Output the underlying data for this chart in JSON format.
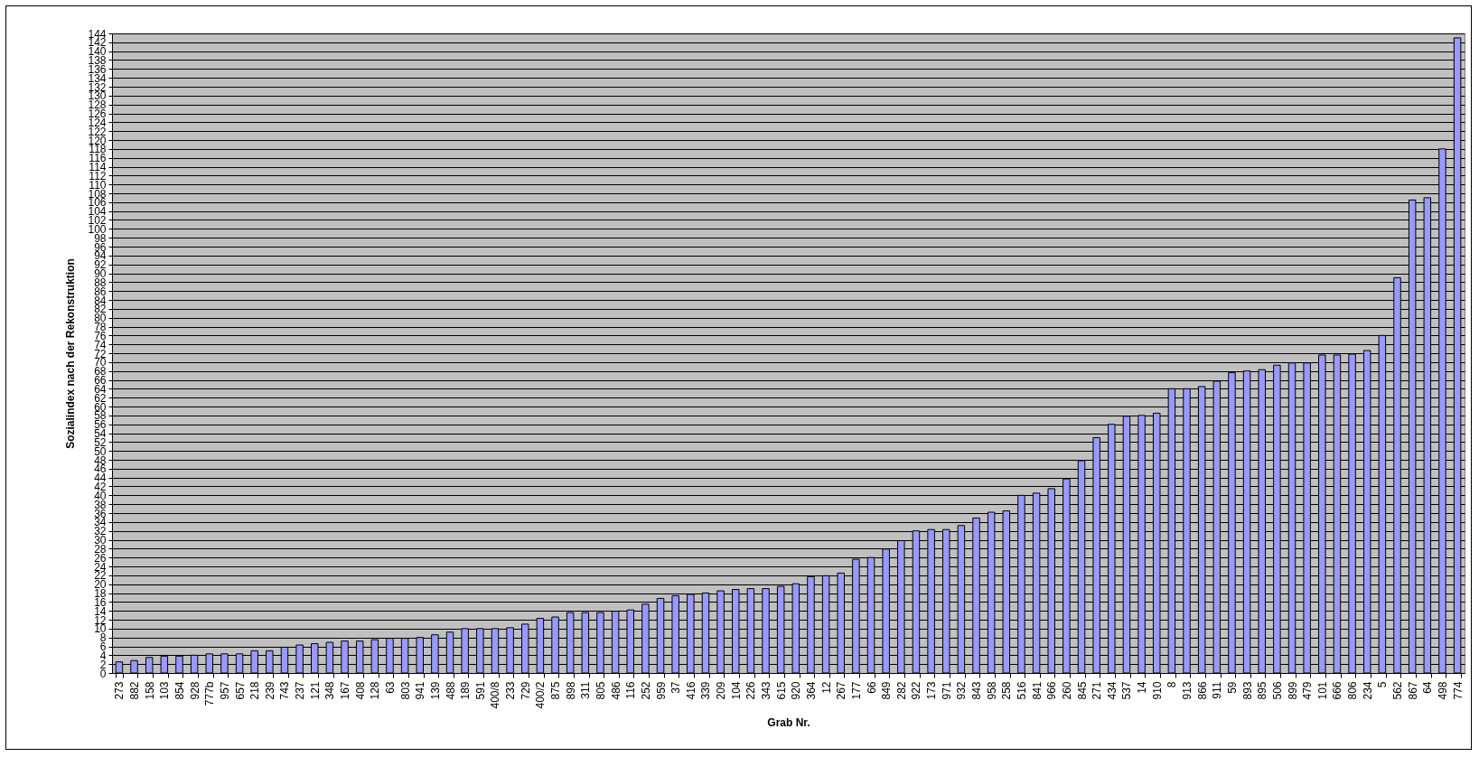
{
  "chart_data": {
    "type": "bar",
    "xlabel": "Grab Nr.",
    "ylabel": "Sozialindex nach der Rekonstruktion",
    "categories": [
      "273",
      "882",
      "158",
      "103",
      "854",
      "928",
      "777b",
      "957",
      "657",
      "218",
      "239",
      "743",
      "237",
      "121",
      "348",
      "167",
      "408",
      "128",
      "63",
      "803",
      "941",
      "139",
      "488",
      "189",
      "591",
      "400/8",
      "233",
      "729",
      "400/2",
      "875",
      "898",
      "311",
      "805",
      "486",
      "116",
      "252",
      "959",
      "37",
      "416",
      "339",
      "209",
      "104",
      "226",
      "343",
      "615",
      "920",
      "364",
      "12",
      "267",
      "177",
      "66",
      "849",
      "282",
      "922",
      "173",
      "971",
      "932",
      "843",
      "958",
      "258",
      "516",
      "841",
      "966",
      "260",
      "845",
      "271",
      "434",
      "537",
      "14",
      "910",
      "8",
      "913",
      "866",
      "911",
      "59",
      "893",
      "895",
      "506",
      "899",
      "479",
      "101",
      "666",
      "806",
      "234",
      "5",
      "562",
      "867",
      "64",
      "498",
      "774"
    ],
    "values": [
      2.5,
      2.8,
      3.5,
      3.8,
      3.8,
      4,
      4.3,
      4.3,
      4.3,
      5,
      5,
      5.8,
      6.3,
      6.6,
      6.9,
      7.2,
      7.2,
      7.5,
      7.8,
      7.8,
      8,
      8.6,
      9.2,
      10,
      10,
      10,
      10.2,
      11,
      12.3,
      12.6,
      13.6,
      13.6,
      13.6,
      13.9,
      14.2,
      15.5,
      16.8,
      17.4,
      17.7,
      18,
      18.5,
      18.8,
      19,
      19,
      19.5,
      20.1,
      21.7,
      21.9,
      22.5,
      25.6,
      26,
      27.9,
      29.8,
      32,
      32.3,
      32.3,
      33.2,
      34.9,
      36.2,
      36.5,
      40,
      40.5,
      41.5,
      43.7,
      47.8,
      53,
      56,
      57.8,
      58,
      58.5,
      64,
      64,
      64.5,
      65.7,
      67.6,
      68,
      68.3,
      69.3,
      69.8,
      69.8,
      71.6,
      71.6,
      71.8,
      72.6,
      76,
      89,
      106.5,
      107,
      118,
      143
    ],
    "color": "#9999ff",
    "ylim": [
      0,
      144
    ],
    "yticks": [
      0,
      2,
      4,
      6,
      8,
      10,
      12,
      14,
      16,
      18,
      20,
      22,
      24,
      26,
      28,
      30,
      32,
      34,
      36,
      38,
      40,
      42,
      44,
      46,
      48,
      50,
      52,
      54,
      56,
      58,
      60,
      62,
      64,
      66,
      68,
      70,
      72,
      74,
      76,
      78,
      80,
      82,
      84,
      86,
      88,
      90,
      92,
      94,
      96,
      98,
      100,
      102,
      104,
      106,
      108,
      110,
      112,
      114,
      116,
      118,
      120,
      122,
      124,
      126,
      128,
      130,
      132,
      134,
      136,
      138,
      140,
      142,
      144
    ],
    "grid": true
  }
}
